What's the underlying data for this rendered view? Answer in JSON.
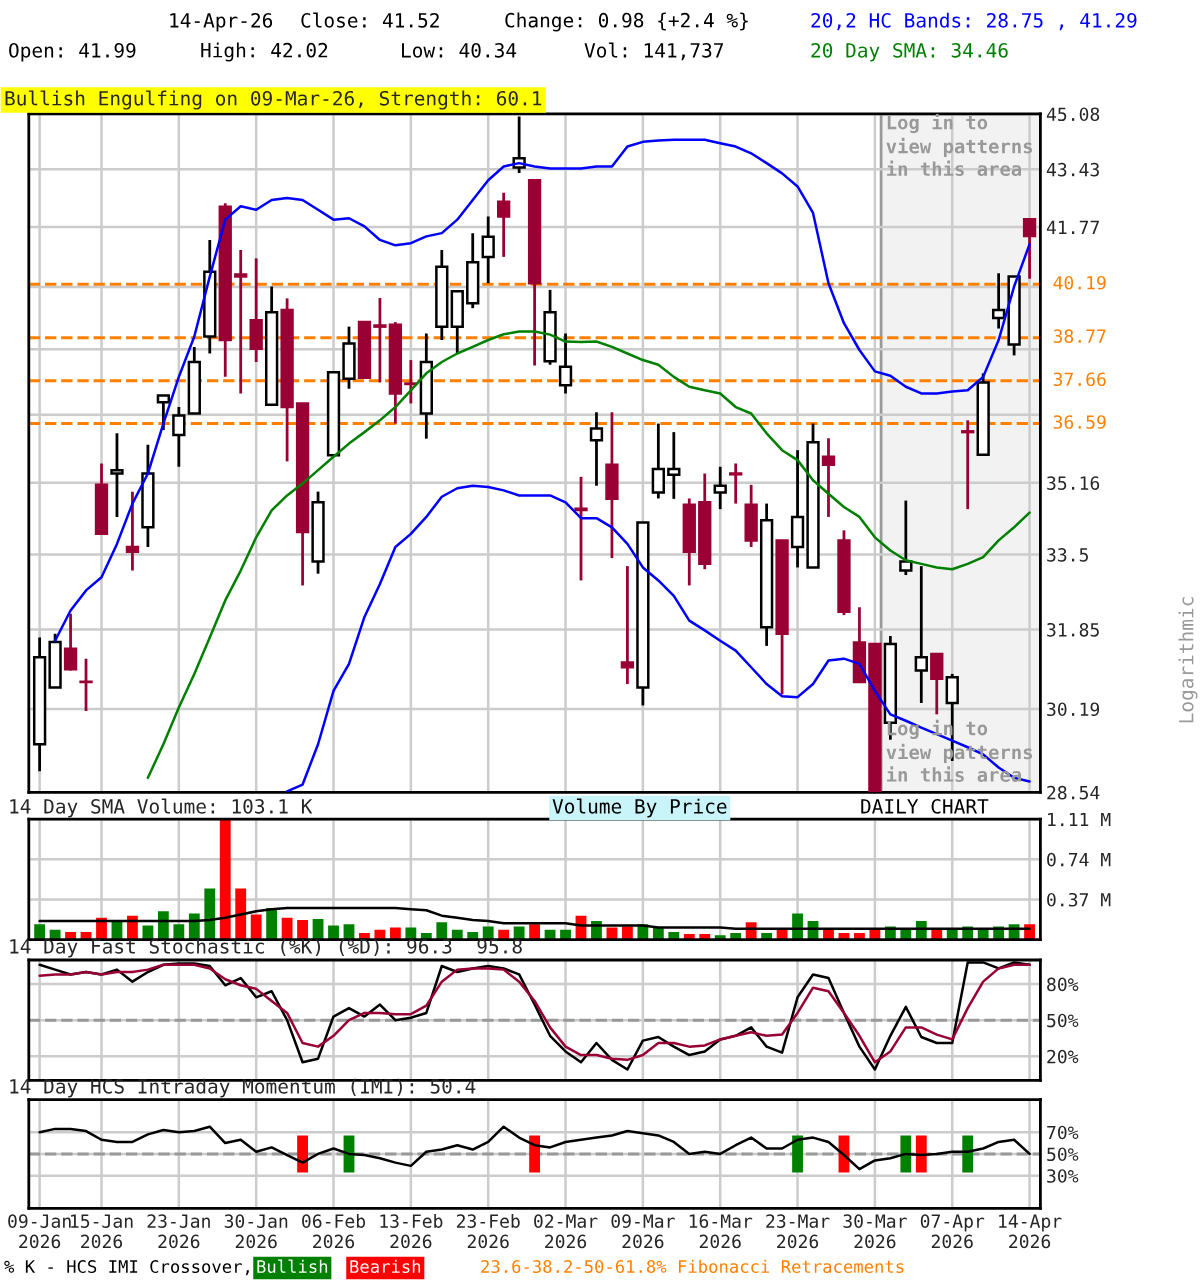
{
  "chart_data": [
    {
      "type": "candlestick",
      "title": "Bullish Engulfing on 09-Mar-26, Strength: 60.1",
      "categories": [
        "09-Jan\n2026",
        null,
        null,
        null,
        "15-Jan\n2026",
        null,
        null,
        null,
        null,
        "23-Jan\n2026",
        null,
        null,
        null,
        null,
        "30-Jan\n2026",
        null,
        null,
        null,
        null,
        "06-Feb\n2026",
        null,
        null,
        null,
        null,
        "13-Feb\n2026",
        null,
        null,
        null,
        null,
        "23-Feb\n2026",
        null,
        null,
        null,
        null,
        "02-Mar\n2026",
        null,
        null,
        null,
        null,
        "09-Mar\n2026",
        null,
        null,
        null,
        null,
        "16-Mar\n2026",
        null,
        null,
        null,
        null,
        "23-Mar\n2026",
        null,
        null,
        null,
        null,
        "30-Mar\n2026",
        null,
        null,
        null,
        null,
        "07-Apr\n2026",
        null,
        null,
        null,
        null,
        "14-Apr\n2026"
      ],
      "ohlc": [
        [
          29.48,
          31.68,
          28.95,
          31.26
        ],
        [
          30.63,
          31.76,
          30.63,
          31.58
        ],
        [
          31.44,
          32.19,
          30.98,
          31.01
        ],
        [
          30.75,
          31.23,
          30.15,
          30.74
        ],
        [
          35.11,
          35.62,
          33.97,
          33.97
        ],
        [
          35.38,
          36.35,
          34.36,
          35.46
        ],
        [
          33.67,
          34.95,
          33.14,
          33.56
        ],
        [
          34.12,
          36.07,
          33.67,
          35.38
        ],
        [
          37.12,
          37.29,
          36.43,
          37.29
        ],
        [
          36.31,
          37.0,
          35.54,
          36.79
        ],
        [
          36.84,
          38.53,
          36.84,
          38.14
        ],
        [
          38.8,
          41.41,
          38.36,
          40.53
        ],
        [
          42.35,
          42.45,
          37.76,
          38.71
        ],
        [
          40.46,
          41.13,
          37.34,
          40.4
        ],
        [
          39.23,
          40.9,
          38.14,
          38.48
        ],
        [
          37.06,
          40.13,
          37.06,
          39.44
        ],
        [
          39.5,
          39.81,
          35.67,
          37.0
        ],
        [
          37.09,
          37.09,
          32.81,
          34.01
        ],
        [
          33.34,
          34.95,
          33.07,
          34.7
        ],
        [
          35.82,
          37.88,
          35.82,
          37.88
        ],
        [
          37.71,
          39.06,
          37.46,
          38.62
        ],
        [
          39.18,
          39.18,
          37.74,
          37.74
        ],
        [
          39.09,
          39.82,
          37.62,
          39.06
        ],
        [
          39.11,
          39.18,
          36.59,
          37.34
        ],
        [
          37.59,
          38.19,
          37.09,
          37.58
        ],
        [
          36.84,
          38.88,
          36.22,
          38.14
        ],
        [
          39.06,
          41.13,
          38.71,
          40.67
        ],
        [
          39.06,
          40.0,
          38.36,
          40.0
        ],
        [
          39.68,
          41.6,
          39.55,
          40.79
        ],
        [
          40.94,
          42.07,
          40.22,
          41.5
        ],
        [
          42.49,
          42.75,
          40.94,
          42.07
        ],
        [
          43.48,
          45.0,
          43.32,
          43.75
        ],
        [
          43.11,
          43.11,
          38.05,
          40.22
        ],
        [
          38.16,
          40.04,
          38.07,
          39.44
        ],
        [
          37.55,
          38.88,
          37.34,
          38.02
        ],
        [
          34.55,
          35.3,
          32.92,
          34.52
        ],
        [
          36.18,
          36.87,
          35.09,
          36.47
        ],
        [
          35.59,
          36.87,
          33.42,
          34.78
        ],
        [
          31.15,
          33.24,
          30.7,
          31.05
        ],
        [
          30.63,
          34.23,
          30.26,
          34.23
        ],
        [
          34.93,
          36.59,
          34.79,
          35.49
        ],
        [
          35.35,
          36.38,
          34.78,
          35.49
        ],
        [
          34.64,
          34.79,
          32.81,
          33.56
        ],
        [
          34.7,
          35.38,
          33.17,
          33.29
        ],
        [
          34.93,
          35.54,
          34.54,
          35.09
        ],
        [
          35.38,
          35.62,
          34.67,
          35.36
        ],
        [
          34.64,
          35.11,
          33.67,
          33.82
        ],
        [
          31.9,
          34.67,
          31.5,
          34.28
        ],
        [
          33.82,
          33.82,
          30.49,
          31.76
        ],
        [
          33.67,
          35.94,
          33.21,
          34.36
        ],
        [
          33.21,
          36.59,
          33.21,
          36.13
        ],
        [
          35.78,
          36.23,
          34.36,
          35.59
        ],
        [
          33.82,
          34.05,
          32.16,
          32.23
        ],
        [
          31.57,
          32.33,
          30.74,
          30.74
        ],
        [
          31.54,
          31.54,
          28.56,
          28.56
        ],
        [
          29.91,
          31.71,
          29.57,
          31.54
        ],
        [
          33.14,
          34.74,
          33.04,
          33.34
        ],
        [
          30.98,
          33.24,
          30.31,
          31.26
        ],
        [
          31.33,
          31.33,
          30.08,
          30.81
        ],
        [
          30.31,
          30.91,
          29.15,
          30.84
        ],
        [
          36.4,
          36.67,
          34.54,
          36.38
        ],
        [
          35.83,
          37.85,
          35.83,
          37.62
        ],
        [
          39.29,
          40.49,
          39.01,
          39.5
        ],
        [
          38.59,
          40.4,
          38.31,
          40.4
        ],
        [
          41.99,
          42.02,
          40.34,
          41.52
        ]
      ],
      "series": [
        {
          "type": "line",
          "color": "#0000ff",
          "values": [
            null,
            31.61,
            32.26,
            32.7,
            32.99,
            33.74,
            34.67,
            35.38,
            36.59,
            37.76,
            38.8,
            40.4,
            41.98,
            42.36,
            42.26,
            42.54,
            42.6,
            42.54,
            42.26,
            41.98,
            42.02,
            41.79,
            41.41,
            41.26,
            41.32,
            41.51,
            41.6,
            41.98,
            42.54,
            43.11,
            43.51,
            43.61,
            43.51,
            43.45,
            43.45,
            43.45,
            43.51,
            43.51,
            44.1,
            44.24,
            44.28,
            44.3,
            44.3,
            44.3,
            44.2,
            44.1,
            43.9,
            43.61,
            43.31,
            42.93,
            42.17,
            40.22,
            39.15,
            38.45,
            37.9,
            37.79,
            37.51,
            37.34,
            37.34,
            37.39,
            37.42,
            37.76,
            38.71,
            40.13,
            41.29
          ]
        },
        {
          "type": "line",
          "color": "#0000ff",
          "values": [
            null,
            null,
            null,
            null,
            null,
            null,
            null,
            null,
            null,
            null,
            null,
            null,
            null,
            null,
            null,
            null,
            28.56,
            28.69,
            29.48,
            30.56,
            31.12,
            32.12,
            32.84,
            33.67,
            33.97,
            34.36,
            34.83,
            35.03,
            35.09,
            35.06,
            34.98,
            34.86,
            34.86,
            34.86,
            34.7,
            34.33,
            34.33,
            34.12,
            33.74,
            33.21,
            32.92,
            32.58,
            32.04,
            31.83,
            31.61,
            31.4,
            31.05,
            30.7,
            30.45,
            30.43,
            30.7,
            31.19,
            31.23,
            31.12,
            30.56,
            30.08,
            29.95,
            29.81,
            29.68,
            29.55,
            29.42,
            29.28,
            29.02,
            28.82,
            28.75
          ]
        },
        {
          "type": "line",
          "color": "#008000",
          "values": [
            null,
            null,
            null,
            null,
            null,
            null,
            null,
            28.82,
            29.48,
            30.22,
            30.91,
            31.68,
            32.48,
            33.14,
            33.89,
            34.51,
            34.86,
            35.14,
            35.46,
            35.78,
            36.1,
            36.38,
            36.67,
            37.0,
            37.42,
            37.85,
            38.14,
            38.36,
            38.53,
            38.71,
            38.86,
            38.93,
            38.93,
            38.85,
            38.67,
            38.66,
            38.67,
            38.53,
            38.36,
            38.19,
            38.07,
            37.76,
            37.51,
            37.42,
            37.34,
            37.0,
            36.84,
            36.35,
            35.94,
            35.7,
            35.22,
            34.9,
            34.59,
            34.36,
            33.89,
            33.59,
            33.37,
            33.29,
            33.21,
            33.17,
            33.29,
            33.44,
            33.82,
            34.12,
            34.46
          ]
        }
      ],
      "log": "y",
      "ylim": [
        28.54,
        45.08
      ],
      "yticks": [
        45.08,
        43.43,
        41.77,
        {
          "value": 40.12,
          "label": null
        },
        {
          "value": 38.47,
          "label": null
        },
        {
          "value": 36.81,
          "label": null
        },
        35.16,
        33.5,
        31.85,
        30.19,
        28.54
      ],
      "grid": true,
      "tick_labels": "y",
      "ref_lines": [
        {
          "axis": "y",
          "value": 40.19,
          "label": "40.19",
          "color": "#ff8000",
          "line_style": "dashed"
        },
        {
          "axis": "y",
          "value": 38.77,
          "label": "38.77",
          "color": "#ff8000",
          "line_style": "dashed"
        },
        {
          "axis": "y",
          "value": 37.66,
          "label": "37.66",
          "color": "#ff8000",
          "line_style": "dashed"
        },
        {
          "axis": "y",
          "value": 36.59,
          "label": "36.59",
          "color": "#ff8000",
          "line_style": "dashed"
        }
      ],
      "bands": [
        {
          "axis": "x",
          "from": "30-Mar\n2026",
          "to": "14-Apr\n2026",
          "label": "Log in to view patterns in this area",
          "color": "#f2f2f2"
        }
      ],
      "annotations": [
        "14-Apr-26",
        "Close: 41.52",
        "Change: 0.98 {+2.4 %}",
        "20,2 HC Bands: 28.75 , 41.29",
        "Open: 41.99",
        "High: 42.02",
        "Low: 40.34",
        "Vol: 141,737",
        "20 Day SMA: 34.46",
        "Logarithmic",
        "Log in to view patterns in this area"
      ]
    },
    {
      "type": "bar",
      "title": "14 Day SMA Volume: 103.1 K",
      "categories": [
        "09-Jan\n2026",
        null,
        null,
        null,
        "15-Jan\n2026",
        null,
        null,
        null,
        null,
        "23-Jan\n2026",
        null,
        null,
        null,
        null,
        "30-Jan\n2026",
        null,
        null,
        null,
        null,
        "06-Feb\n2026",
        null,
        null,
        null,
        null,
        "13-Feb\n2026",
        null,
        null,
        null,
        null,
        "23-Feb\n2026",
        null,
        null,
        null,
        null,
        "02-Mar\n2026",
        null,
        null,
        null,
        null,
        "09-Mar\n2026",
        null,
        null,
        null,
        null,
        "16-Mar\n2026",
        null,
        null,
        null,
        null,
        "23-Mar\n2026",
        null,
        null,
        null,
        null,
        "30-Mar\n2026",
        null,
        null,
        null,
        null,
        "07-Apr\n2026",
        null,
        null,
        null,
        null,
        "14-Apr\n2026"
      ],
      "series": [
        {
          "type": "bar",
          "values": [
            0.14,
            0.09,
            0.07,
            0.07,
            0.2,
            0.18,
            0.22,
            0.13,
            0.26,
            0.14,
            0.24,
            0.47,
            1.11,
            0.47,
            0.23,
            0.29,
            0.2,
            0.18,
            0.19,
            0.13,
            0.14,
            0.06,
            0.09,
            0.11,
            0.11,
            0.06,
            0.16,
            0.09,
            0.07,
            0.12,
            0.09,
            0.12,
            0.14,
            0.09,
            0.09,
            0.22,
            0.17,
            0.11,
            0.12,
            0.14,
            0.11,
            0.07,
            0.05,
            0.05,
            0.04,
            0.06,
            0.16,
            0.06,
            0.09,
            0.24,
            0.17,
            0.09,
            0.06,
            0.06,
            0.09,
            0.12,
            0.09,
            0.17,
            0.09,
            0.09,
            0.12,
            0.09,
            0.12,
            0.14,
            0.14
          ],
          "colors": [
            "#008000",
            "#008000",
            "#ff0000",
            "#ff0000",
            "#ff0000",
            "#008000",
            "#ff0000",
            "#008000",
            "#008000",
            "#008000",
            "#008000",
            "#008000",
            "#ff0000",
            "#ff0000",
            "#ff0000",
            "#008000",
            "#ff0000",
            "#ff0000",
            "#008000",
            "#008000",
            "#008000",
            "#ff0000",
            "#ff0000",
            "#ff0000",
            "#008000",
            "#008000",
            "#008000",
            "#008000",
            "#008000",
            "#008000",
            "#ff0000",
            "#008000",
            "#ff0000",
            "#008000",
            "#008000",
            "#ff0000",
            "#008000",
            "#ff0000",
            "#ff0000",
            "#008000",
            "#008000",
            "#008000",
            "#ff0000",
            "#ff0000",
            "#008000",
            "#008000",
            "#ff0000",
            "#008000",
            "#ff0000",
            "#008000",
            "#008000",
            "#ff0000",
            "#ff0000",
            "#ff0000",
            "#ff0000",
            "#008000",
            "#008000",
            "#008000",
            "#ff0000",
            "#008000",
            "#008000",
            "#008000",
            "#008000",
            "#008000",
            "#ff0000"
          ]
        },
        {
          "type": "line",
          "color": "#000000",
          "values": [
            0.17,
            0.17,
            0.17,
            0.17,
            0.17,
            0.17,
            0.17,
            0.17,
            0.17,
            0.17,
            0.17,
            0.18,
            0.2,
            0.23,
            0.26,
            0.28,
            0.29,
            0.29,
            0.29,
            0.29,
            0.29,
            0.29,
            0.29,
            0.29,
            0.28,
            0.27,
            0.22,
            0.2,
            0.18,
            0.17,
            0.15,
            0.15,
            0.15,
            0.15,
            0.15,
            0.13,
            0.13,
            0.13,
            0.13,
            0.13,
            0.11,
            0.11,
            0.11,
            0.11,
            0.11,
            0.1,
            0.1,
            0.1,
            0.1,
            0.1,
            0.1,
            0.1,
            0.1,
            0.1,
            0.1,
            0.1,
            0.1,
            0.1,
            0.1,
            0.1,
            0.1,
            0.1,
            0.1,
            0.1,
            0.1
          ]
        }
      ],
      "ylim": [
        0,
        1.11
      ],
      "yticks": [
        {
          "value": 1.11,
          "label": "1.11 M"
        },
        {
          "value": 0.74,
          "label": "0.74 M"
        },
        {
          "value": 0.37,
          "label": "0.37 M"
        }
      ],
      "grid": true,
      "tick_labels": "y",
      "annotations": [
        "Volume By Price",
        "DAILY CHART"
      ]
    },
    {
      "type": "line",
      "title": "14 Day Fast Stochastic (%K) (%D): 96.3  95.8",
      "categories": [
        "09-Jan\n2026",
        null,
        null,
        null,
        "15-Jan\n2026",
        null,
        null,
        null,
        null,
        "23-Jan\n2026",
        null,
        null,
        null,
        null,
        "30-Jan\n2026",
        null,
        null,
        null,
        null,
        "06-Feb\n2026",
        null,
        null,
        null,
        null,
        "13-Feb\n2026",
        null,
        null,
        null,
        null,
        "23-Feb\n2026",
        null,
        null,
        null,
        null,
        "02-Mar\n2026",
        null,
        null,
        null,
        null,
        "09-Mar\n2026",
        null,
        null,
        null,
        null,
        "16-Mar\n2026",
        null,
        null,
        null,
        null,
        "23-Mar\n2026",
        null,
        null,
        null,
        null,
        "30-Mar\n2026",
        null,
        null,
        null,
        null,
        "07-Apr\n2026",
        null,
        null,
        null,
        null,
        "14-Apr\n2026"
      ],
      "series": [
        {
          "color": "#000000",
          "values": [
            96,
            92,
            88,
            90,
            88,
            92,
            82,
            90,
            96,
            97,
            97,
            95,
            79,
            85,
            69,
            74,
            50,
            15,
            18,
            53,
            60,
            53,
            63,
            50,
            52,
            56,
            95,
            90,
            93,
            95,
            93,
            88,
            63,
            37,
            24,
            15,
            31,
            17,
            9,
            33,
            36,
            28,
            21,
            24,
            34,
            37,
            44,
            28,
            23,
            69,
            88,
            85,
            56,
            28,
            9,
            37,
            61,
            36,
            31,
            31,
            98,
            98,
            93,
            98,
            96
          ]
        },
        {
          "color": "#990033",
          "values": [
            87,
            88,
            88,
            90,
            88,
            90,
            90,
            92,
            96,
            96,
            96,
            93,
            84,
            79,
            76,
            66,
            56,
            31,
            28,
            37,
            50,
            56,
            56,
            55,
            55,
            62,
            82,
            92,
            93,
            93,
            92,
            82,
            66,
            44,
            28,
            21,
            21,
            18,
            17,
            21,
            31,
            31,
            28,
            29,
            34,
            37,
            40,
            37,
            38,
            56,
            77,
            74,
            56,
            37,
            15,
            24,
            44,
            44,
            38,
            34,
            60,
            82,
            93,
            96,
            96
          ]
        }
      ],
      "ylim": [
        0,
        100
      ],
      "yticks": [
        {
          "value": 80,
          "label": "80%"
        },
        {
          "value": 50,
          "label": "50%"
        },
        {
          "value": 20,
          "label": "20%"
        }
      ],
      "grid": true,
      "tick_labels": "y",
      "ref_lines": [
        {
          "axis": "y",
          "value": 50,
          "label": null,
          "color": "#999999",
          "line_style": "dashed"
        }
      ]
    },
    {
      "type": "line",
      "title": "14 Day HCS Intraday Momentum (IMI): 50.4",
      "categories": [
        "09-Jan\n2026",
        null,
        null,
        null,
        "15-Jan\n2026",
        null,
        null,
        null,
        null,
        "23-Jan\n2026",
        null,
        null,
        null,
        null,
        "30-Jan\n2026",
        null,
        null,
        null,
        null,
        "06-Feb\n2026",
        null,
        null,
        null,
        null,
        "13-Feb\n2026",
        null,
        null,
        null,
        null,
        "23-Feb\n2026",
        null,
        null,
        null,
        null,
        "02-Mar\n2026",
        null,
        null,
        null,
        null,
        "09-Mar\n2026",
        null,
        null,
        null,
        null,
        "16-Mar\n2026",
        null,
        null,
        null,
        null,
        "23-Mar\n2026",
        null,
        null,
        null,
        null,
        "30-Mar\n2026",
        null,
        null,
        null,
        null,
        "07-Apr\n2026",
        null,
        null,
        null,
        null,
        "14-Apr\n2026"
      ],
      "series": [
        {
          "type": "bar",
          "name": "Bullish",
          "color": "#008000",
          "values": [
            null,
            null,
            null,
            null,
            null,
            null,
            null,
            null,
            null,
            null,
            null,
            null,
            null,
            null,
            null,
            null,
            null,
            null,
            null,
            null,
            34,
            null,
            null,
            null,
            null,
            null,
            null,
            null,
            null,
            null,
            null,
            null,
            null,
            null,
            null,
            null,
            null,
            null,
            null,
            null,
            null,
            null,
            null,
            null,
            null,
            null,
            null,
            null,
            null,
            34,
            null,
            null,
            null,
            null,
            null,
            null,
            34,
            null,
            null,
            null,
            34,
            null,
            null,
            null,
            null
          ],
          "base": [
            null,
            null,
            null,
            null,
            null,
            null,
            null,
            null,
            null,
            null,
            null,
            null,
            null,
            null,
            null,
            null,
            null,
            null,
            null,
            null,
            33,
            null,
            null,
            null,
            null,
            null,
            null,
            null,
            null,
            null,
            null,
            null,
            null,
            null,
            null,
            null,
            null,
            null,
            null,
            null,
            null,
            null,
            null,
            null,
            null,
            null,
            null,
            null,
            null,
            33,
            null,
            null,
            null,
            null,
            null,
            null,
            33,
            null,
            null,
            null,
            33,
            null,
            null,
            null,
            null
          ]
        },
        {
          "type": "bar",
          "name": "Bearish",
          "color": "#ff0000",
          "values": [
            null,
            null,
            null,
            null,
            null,
            null,
            null,
            null,
            null,
            null,
            null,
            null,
            null,
            null,
            null,
            null,
            null,
            34,
            null,
            null,
            null,
            null,
            null,
            null,
            null,
            null,
            null,
            null,
            null,
            null,
            null,
            null,
            34,
            null,
            null,
            null,
            null,
            null,
            null,
            null,
            null,
            null,
            null,
            null,
            null,
            null,
            null,
            null,
            null,
            null,
            null,
            null,
            34,
            null,
            null,
            null,
            null,
            34,
            null,
            null,
            null,
            null,
            null,
            null,
            null
          ],
          "base": [
            null,
            null,
            null,
            null,
            null,
            null,
            null,
            null,
            null,
            null,
            null,
            null,
            null,
            null,
            null,
            null,
            null,
            33,
            null,
            null,
            null,
            null,
            null,
            null,
            null,
            null,
            null,
            null,
            null,
            null,
            null,
            null,
            33,
            null,
            null,
            null,
            null,
            null,
            null,
            null,
            null,
            null,
            null,
            null,
            null,
            null,
            null,
            null,
            null,
            null,
            null,
            null,
            33,
            null,
            null,
            null,
            null,
            33,
            null,
            null,
            null,
            null,
            null,
            null,
            null
          ]
        },
        {
          "type": "line",
          "color": "#000000",
          "values": [
            70,
            73,
            73,
            71,
            63,
            61,
            61,
            68,
            72,
            70,
            71,
            75,
            60,
            63,
            52,
            56,
            49,
            42,
            50,
            55,
            50,
            49,
            46,
            42,
            39,
            52,
            54,
            58,
            54,
            61,
            75,
            65,
            58,
            56,
            61,
            63,
            65,
            67,
            71,
            69,
            67,
            61,
            50,
            52,
            50,
            58,
            65,
            55,
            55,
            63,
            65,
            61,
            49,
            36,
            44,
            46,
            50,
            49,
            50,
            52,
            52,
            55,
            61,
            63,
            50
          ]
        }
      ],
      "ylim": [
        0,
        100
      ],
      "yticks": [
        {
          "value": 70,
          "label": "70%"
        },
        {
          "value": 50,
          "label": "50%"
        },
        {
          "value": 30,
          "label": "30%"
        }
      ],
      "grid": true,
      "legend": "bottom left",
      "ref_lines": [
        {
          "axis": "y",
          "value": 50,
          "label": null,
          "color": "#999999",
          "line_style": "dashed"
        }
      ],
      "annotations": [
        "% K - HCS IMI Crossover,",
        "23.6-38.2-50-61.8% Fibonacci Retracements"
      ]
    }
  ]
}
